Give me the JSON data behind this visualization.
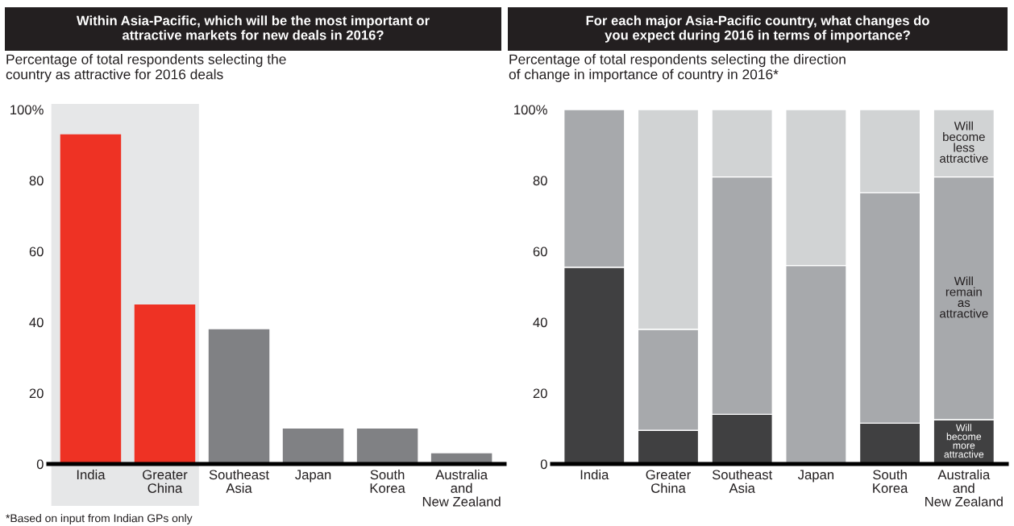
{
  "chart_data": [
    {
      "type": "bar",
      "title": "Within Asia-Pacific, which will be the most important or\nattractive markets for new deals in 2016?",
      "subtitle": "Percentage of total respondents selecting the\ncountry as attractive for 2016 deals",
      "categories": [
        "India",
        "Greater\nChina",
        "Southeast\nAsia",
        "Japan",
        "South\nKorea",
        "Australia\nand\nNew Zealand"
      ],
      "values": [
        93,
        45,
        38,
        10,
        10,
        3
      ],
      "colors": [
        "#ee3224",
        "#ee3224",
        "#808184",
        "#808184",
        "#808184",
        "#808184"
      ],
      "ylim": [
        0,
        100
      ],
      "yticks": [
        {
          "value": 100,
          "label": "100%"
        },
        80,
        60,
        40,
        20,
        0
      ],
      "bands": [
        {
          "axis": "x",
          "from": "India",
          "to": "Greater\nChina",
          "color": "#e6e7e8"
        }
      ],
      "annotations": [
        "*Based on input from Indian GPs only"
      ]
    },
    {
      "type": "bar",
      "stacked": true,
      "title": "For each major Asia-Pacific country, what changes do\nyou expect during 2016 in terms of importance?",
      "subtitle": "Percentage of total respondents selecting the direction\nof change in importance of country in 2016*",
      "categories": [
        "India",
        "Greater\nChina",
        "Southeast\nAsia",
        "Japan",
        "South\nKorea",
        "Australia\nand\nNew Zealand"
      ],
      "series": [
        {
          "name": "Will become more attractive",
          "color": "#404041",
          "values": [
            55.5,
            9.5,
            14,
            0,
            11.5,
            12.5
          ]
        },
        {
          "name": "Will remain as attractive",
          "color": "#a7a9ac",
          "values": [
            44.5,
            28.5,
            67,
            56,
            65,
            68.5
          ]
        },
        {
          "name": "Will become less attractive",
          "color": "#d1d3d4",
          "values": [
            0,
            62,
            19,
            44,
            23.5,
            19
          ]
        }
      ],
      "ylim": [
        0,
        100
      ],
      "yticks": [
        {
          "value": 100,
          "label": "100%"
        },
        80,
        60,
        40,
        20,
        0
      ]
    }
  ]
}
